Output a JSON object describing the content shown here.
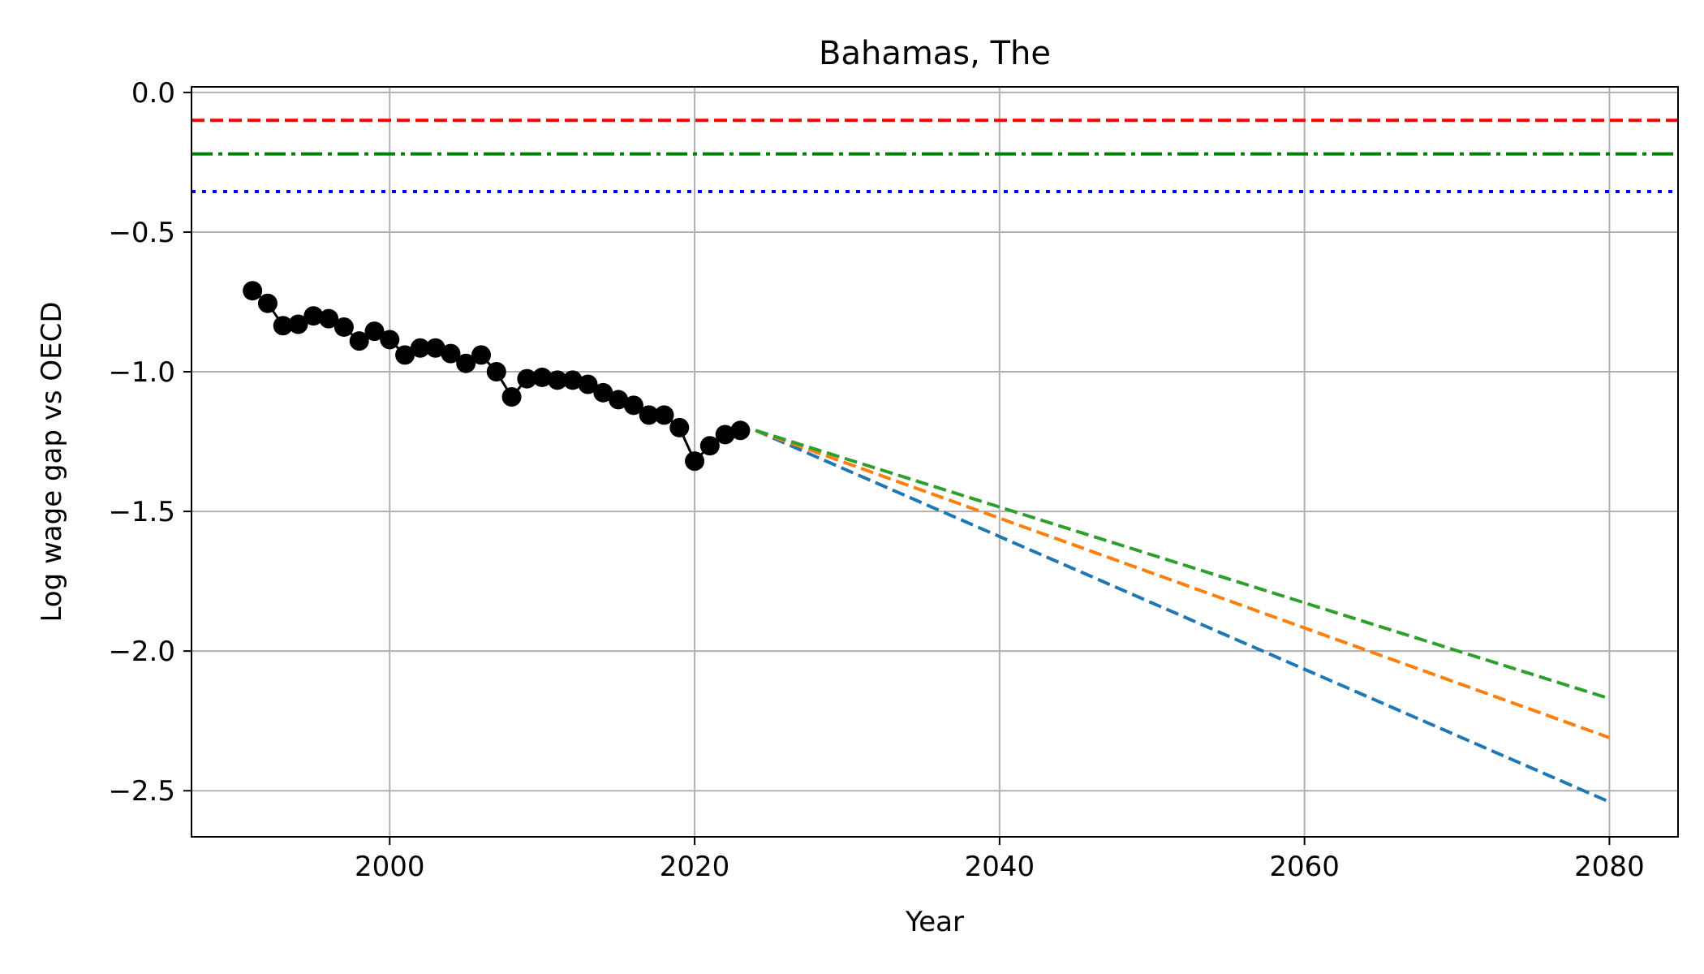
{
  "chart_data": {
    "type": "line",
    "title": "Bahamas, The",
    "xlabel": "Year",
    "ylabel": "Log wage gap vs OECD",
    "xlim": [
      1987,
      2084.5
    ],
    "ylim": [
      -2.665,
      0.02
    ],
    "grid": true,
    "xticks": [
      2000,
      2020,
      2040,
      2060,
      2080
    ],
    "xtick_labels": [
      "2000",
      "2020",
      "2040",
      "2060",
      "2080"
    ],
    "yticks": [
      0.0,
      -0.5,
      -1.0,
      -1.5,
      -2.0,
      -2.5
    ],
    "ytick_labels": [
      "0.0",
      "−0.5",
      "−1.0",
      "−1.5",
      "−2.0",
      "−2.5"
    ],
    "reference_lines": [
      {
        "y": -0.1,
        "color": "#ff0000",
        "style": "dashed"
      },
      {
        "y": -0.22,
        "color": "#008000",
        "style": "dashdot"
      },
      {
        "y": -0.355,
        "color": "#0000ff",
        "style": "dotted"
      }
    ],
    "history": {
      "color": "#000000",
      "x": [
        1991,
        1992,
        1993,
        1994,
        1995,
        1996,
        1997,
        1998,
        1999,
        2000,
        2001,
        2002,
        2003,
        2004,
        2005,
        2006,
        2007,
        2008,
        2009,
        2010,
        2011,
        2012,
        2013,
        2014,
        2015,
        2016,
        2017,
        2018,
        2019,
        2020,
        2021,
        2022,
        2023
      ],
      "y": [
        -0.71,
        -0.755,
        -0.835,
        -0.83,
        -0.8,
        -0.81,
        -0.84,
        -0.89,
        -0.855,
        -0.885,
        -0.94,
        -0.915,
        -0.915,
        -0.935,
        -0.97,
        -0.94,
        -1.0,
        -1.09,
        -1.025,
        -1.02,
        -1.03,
        -1.03,
        -1.045,
        -1.075,
        -1.1,
        -1.12,
        -1.155,
        -1.155,
        -1.2,
        -1.32,
        -1.265,
        -1.225,
        -1.21
      ]
    },
    "projections": [
      {
        "color": "#1f77b4",
        "x": [
          2024,
          2080
        ],
        "y": [
          -1.21,
          -2.54
        ]
      },
      {
        "color": "#ff7f0e",
        "x": [
          2024,
          2080
        ],
        "y": [
          -1.21,
          -2.31
        ]
      },
      {
        "color": "#2ca02c",
        "x": [
          2024,
          2080
        ],
        "y": [
          -1.21,
          -2.17
        ]
      }
    ]
  }
}
